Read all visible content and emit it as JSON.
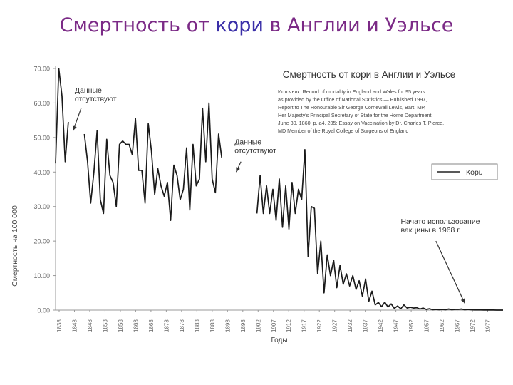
{
  "slide": {
    "title_part1": "Смертность от ",
    "title_part2": "кори",
    "title_part3": " в Англии и Уэльсе",
    "accent_color": "#7b2a86",
    "accent_color_2": "#3a2fa8"
  },
  "chart_data": {
    "type": "line",
    "title": "Смертность от кори в Англии и Уэльсе",
    "source_note": [
      "Источник: Record of mortality in England and Wales for 95 years",
      "as provided by the Office of National Statistics — Published 1997,",
      "Report to The Honourable Sir George Cornewall Lewis, Bart. MP,",
      "Her Majesty's Principal Secretary of State for the Home Department,",
      "June 30, 1860, p. a4, 205; Essay on Vaccination by Dr. Charles T. Pierce,",
      "MD Member of the Royal College of Surgeons of England"
    ],
    "xlabel": "Годы",
    "ylabel": "Смертность на 100 000",
    "ylim": [
      0,
      70
    ],
    "yticks": [
      "0.00",
      "10.00",
      "20.00",
      "30.00",
      "40.00",
      "50.00",
      "60.00",
      "70.00"
    ],
    "xticks": [
      "1838",
      "1843",
      "1848",
      "1853",
      "1858",
      "1863",
      "1868",
      "1873",
      "1878",
      "1883",
      "1888",
      "1893",
      "1898",
      "1902",
      "1907",
      "1912",
      "1917",
      "1922",
      "1927",
      "1932",
      "1937",
      "1942",
      "1947",
      "1952",
      "1957",
      "1962",
      "1967",
      "1972",
      "1977"
    ],
    "grid": false,
    "legend_position": "right",
    "series": [
      {
        "name": "Корь",
        "segments": [
          [
            [
              1838,
              42.5
            ],
            [
              1839,
              70
            ],
            [
              1840,
              62
            ],
            [
              1841,
              43
            ],
            [
              1842,
              54.5
            ]
          ],
          [
            [
              1847,
              51
            ],
            [
              1848,
              43
            ],
            [
              1849,
              31
            ],
            [
              1850,
              40
            ],
            [
              1851,
              52
            ],
            [
              1852,
              32
            ],
            [
              1853,
              28
            ],
            [
              1854,
              49.5
            ],
            [
              1855,
              39
            ],
            [
              1856,
              37
            ],
            [
              1857,
              30
            ],
            [
              1858,
              48
            ],
            [
              1859,
              49
            ],
            [
              1860,
              48
            ],
            [
              1861,
              48
            ],
            [
              1862,
              45
            ],
            [
              1863,
              55.5
            ],
            [
              1864,
              40.5
            ],
            [
              1865,
              40.5
            ],
            [
              1866,
              31
            ],
            [
              1867,
              54
            ],
            [
              1868,
              46
            ],
            [
              1869,
              33.5
            ],
            [
              1870,
              41
            ],
            [
              1871,
              36
            ],
            [
              1872,
              33
            ],
            [
              1873,
              37
            ],
            [
              1874,
              26
            ],
            [
              1875,
              42
            ],
            [
              1876,
              39
            ],
            [
              1877,
              32
            ],
            [
              1878,
              35
            ],
            [
              1879,
              47
            ],
            [
              1880,
              29
            ],
            [
              1881,
              48
            ],
            [
              1882,
              36
            ],
            [
              1883,
              38
            ],
            [
              1884,
              58.5
            ],
            [
              1885,
              43
            ],
            [
              1886,
              60
            ],
            [
              1887,
              38
            ],
            [
              1888,
              34
            ],
            [
              1889,
              51
            ],
            [
              1890,
              44
            ]
          ],
          [
            [
              1901,
              28
            ],
            [
              1902,
              39
            ],
            [
              1903,
              28
            ],
            [
              1904,
              36
            ],
            [
              1905,
              28
            ],
            [
              1906,
              35
            ],
            [
              1907,
              26
            ],
            [
              1908,
              38
            ],
            [
              1909,
              24
            ],
            [
              1910,
              36
            ],
            [
              1911,
              23.5
            ],
            [
              1912,
              37
            ],
            [
              1913,
              28
            ],
            [
              1914,
              35
            ],
            [
              1915,
              32
            ],
            [
              1916,
              46.5
            ],
            [
              1917,
              15.5
            ],
            [
              1918,
              30
            ],
            [
              1919,
              29.5
            ],
            [
              1920,
              10.5
            ],
            [
              1921,
              20
            ],
            [
              1922,
              5
            ],
            [
              1923,
              16
            ],
            [
              1924,
              10
            ],
            [
              1925,
              14.5
            ],
            [
              1926,
              6.5
            ],
            [
              1927,
              13
            ],
            [
              1928,
              7.5
            ],
            [
              1929,
              10.5
            ],
            [
              1930,
              7
            ],
            [
              1931,
              10
            ],
            [
              1932,
              6
            ],
            [
              1933,
              8.5
            ],
            [
              1934,
              4
            ],
            [
              1935,
              9
            ],
            [
              1936,
              2.5
            ],
            [
              1937,
              5.5
            ],
            [
              1938,
              1.5
            ],
            [
              1939,
              2.2
            ],
            [
              1940,
              1
            ],
            [
              1941,
              2.3
            ],
            [
              1942,
              0.9
            ],
            [
              1943,
              1.8
            ],
            [
              1944,
              0.5
            ],
            [
              1945,
              1.2
            ],
            [
              1946,
              0.4
            ],
            [
              1947,
              1.5
            ],
            [
              1948,
              0.6
            ],
            [
              1949,
              0.8
            ],
            [
              1950,
              0.6
            ],
            [
              1951,
              0.7
            ],
            [
              1952,
              0.3
            ],
            [
              1953,
              0.6
            ],
            [
              1954,
              0.2
            ],
            [
              1955,
              0.4
            ],
            [
              1956,
              0.1
            ],
            [
              1957,
              0.2
            ],
            [
              1958,
              0.1
            ],
            [
              1959,
              0.2
            ],
            [
              1960,
              0.1
            ],
            [
              1961,
              0.3
            ],
            [
              1962,
              0.1
            ],
            [
              1963,
              0.2
            ],
            [
              1964,
              0.2
            ],
            [
              1965,
              0.3
            ],
            [
              1966,
              0.1
            ],
            [
              1967,
              0.2
            ],
            [
              1968,
              0.1
            ],
            [
              1969,
              0.05
            ],
            [
              1970,
              0.05
            ],
            [
              1971,
              0.04
            ],
            [
              1972,
              0.03
            ],
            [
              1973,
              0.03
            ],
            [
              1974,
              0.02
            ],
            [
              1975,
              0.02
            ],
            [
              1976,
              0.01
            ],
            [
              1977,
              0.01
            ],
            [
              1978,
              0.01
            ]
          ]
        ]
      }
    ],
    "annotations": [
      {
        "text": [
          "Данные",
          "отсутствуют"
        ],
        "label_at": [
          1844,
          63
        ],
        "arrow_from": [
          1846,
          58.5
        ],
        "arrow_to": [
          1843.5,
          52
        ]
      },
      {
        "text": [
          "Данные",
          "отсутствуют"
        ],
        "label_at": [
          1894,
          48
        ],
        "arrow_from": [
          1896,
          43
        ],
        "arrow_to": [
          1894.5,
          40
        ]
      },
      {
        "text": [
          "Начато использование",
          "вакцины в 1968 г."
        ],
        "label_at": [
          1946,
          25
        ],
        "arrow_from": [
          1957,
          20
        ],
        "arrow_to": [
          1966,
          2
        ]
      }
    ]
  }
}
